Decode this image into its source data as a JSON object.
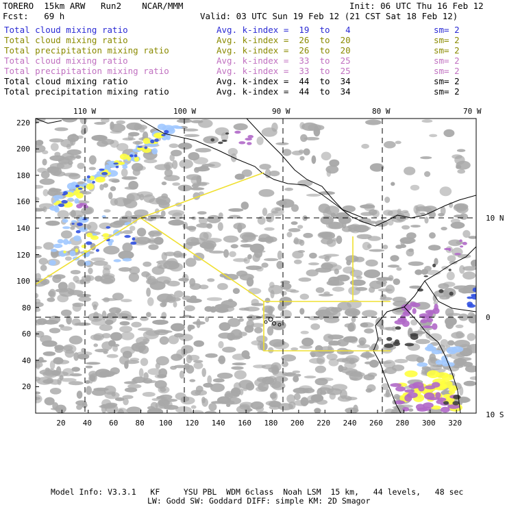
{
  "header": {
    "model": "TORERO  15km ARW   Run2    NCAR/MMM",
    "init": "Init: 06 UTC Thu 16 Feb 12",
    "fcst": "Fcst:   69 h",
    "valid": "Valid: 03 UTC Sun 19 Feb 12 (21 CST Sat 18 Feb 12)"
  },
  "legend": [
    {
      "field": "Total cloud mixing ratio",
      "avg": "Avg. k-index =  19  to   4",
      "sm": "sm= 2",
      "color": "#2a2ad4"
    },
    {
      "field": "Total cloud mixing ratio",
      "avg": "Avg. k-index =  26  to  20",
      "sm": "sm= 2",
      "color": "#8a8a00"
    },
    {
      "field": "Total precipitation mixing ratio",
      "avg": "Avg. k-index =  26  to  20",
      "sm": "sm= 2",
      "color": "#8a8a00"
    },
    {
      "field": "Total cloud mixing ratio",
      "avg": "Avg. k-index =  33  to  25",
      "sm": "sm= 2",
      "color": "#c070c0"
    },
    {
      "field": "Total precipitation mixing ratio",
      "avg": "Avg. k-index =  33  to  25",
      "sm": "sm= 2",
      "color": "#c070c0"
    },
    {
      "field": "Total cloud mixing ratio",
      "avg": "Avg. k-index =  44  to  34",
      "sm": "sm= 2",
      "color": "#000000"
    },
    {
      "field": "Total precipitation mixing ratio",
      "avg": "Avg. k-index =  44  to  34",
      "sm": "sm= 2",
      "color": "#000000"
    }
  ],
  "map": {
    "lon_labels": [
      "110 W",
      "100 W",
      "90 W",
      "80 W",
      "70 W"
    ],
    "lat_labels": [
      "10 N",
      "0",
      "10 S"
    ],
    "x_ticks": [
      "20",
      "40",
      "60",
      "80",
      "100",
      "120",
      "140",
      "160",
      "180",
      "200",
      "220",
      "240",
      "260",
      "280",
      "300",
      "320"
    ],
    "y_ticks": [
      "20",
      "40",
      "60",
      "80",
      "100",
      "120",
      "140",
      "160",
      "180",
      "200",
      "220"
    ],
    "colors": {
      "gray": "#a8a8a8",
      "yellow": "#ffff40",
      "purple": "#b068c8",
      "blue": "#3050e0",
      "lightblue": "#a0c8ff",
      "dark": "#404040",
      "box": "#f0e030"
    }
  },
  "footer": {
    "line1": "Model Info: V3.3.1   KF     YSU PBL  WDM 6class  Noah LSM  15 km,   44 levels,   48 sec",
    "line2": "LW: Godd SW: Goddard DIFF: simple KM: 2D Smagor"
  }
}
